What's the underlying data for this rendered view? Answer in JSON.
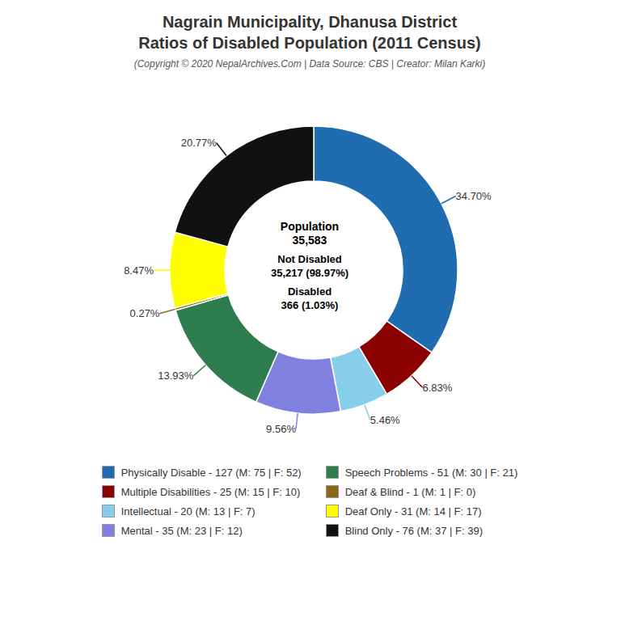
{
  "chart_data": {
    "type": "pie",
    "title": "Nagrain Municipality, Dhanusa District\nRatios of Disabled Population (2011 Census)",
    "subtitle": "(Copyright © 2020 NepalArchives.Com | Data Source: CBS | Creator: Milan Karki)",
    "categories": [
      "Physically Disable - 127 (M: 75 | F: 52)",
      "Multiple Disabilities - 25 (M: 15 | F: 10)",
      "Intellectual - 20 (M: 13 | F: 7)",
      "Mental - 35 (M: 23 | F: 12)",
      "Speech Problems - 51 (M: 30 | F: 21)",
      "Deaf & Blind - 1 (M: 1 | F: 0)",
      "Deaf Only - 31 (M: 14 | F: 17)",
      "Blind Only - 76 (M: 37 | F: 39)"
    ],
    "values": [
      34.7,
      6.83,
      5.46,
      9.56,
      13.93,
      0.27,
      8.47,
      20.77
    ],
    "value_labels": [
      "34.70%",
      "6.83%",
      "5.46%",
      "9.56%",
      "13.93%",
      "0.27%",
      "8.47%",
      "20.77%"
    ],
    "colors": [
      "#1f6cb0",
      "#8b0000",
      "#87ceeb",
      "#8080e0",
      "#2e7d4f",
      "#8b6914",
      "#ffff00",
      "#111111"
    ],
    "data_labels": true,
    "legend": "bottom",
    "annotations": [
      "Population",
      "35,583",
      "Not Disabled",
      "35,217 (98.97%)",
      "Disabled",
      "366 (1.03%)"
    ]
  }
}
